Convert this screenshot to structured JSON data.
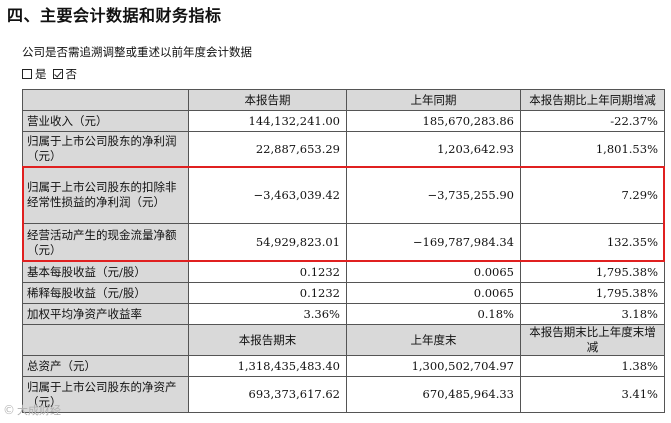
{
  "section_title": "四、主要会计数据和财务指标",
  "question": "公司是否需追溯调整或重述以前年度会计数据",
  "answers": [
    {
      "label": "是",
      "checked": false
    },
    {
      "label": "否",
      "checked": true
    }
  ],
  "table1": {
    "headers": [
      "",
      "本报告期",
      "上年同期",
      "本报告期比上年同期增减"
    ],
    "rows": [
      {
        "label": "营业收入（元）",
        "current": "144,132,241.00",
        "prior": "185,670,283.86",
        "change": "-22.37%"
      },
      {
        "label": "归属于上市公司股东的净利润（元）",
        "current": "22,887,653.29",
        "prior": "1,203,642.93",
        "change": "1,801.53%"
      },
      {
        "label": "归属于上市公司股东的扣除非经常性损益的净利润（元）",
        "current": "−3,463,039.42",
        "prior": "−3,735,255.90",
        "change": "7.29%"
      },
      {
        "label": "经营活动产生的现金流量净额（元）",
        "current": "54,929,823.01",
        "prior": "−169,787,984.34",
        "change": "132.35%"
      },
      {
        "label": "基本每股收益（元/股）",
        "current": "0.1232",
        "prior": "0.0065",
        "change": "1,795.38%"
      },
      {
        "label": "稀释每股收益（元/股）",
        "current": "0.1232",
        "prior": "0.0065",
        "change": "1,795.38%"
      },
      {
        "label": "加权平均净资产收益率",
        "current": "3.36%",
        "prior": "0.18%",
        "change": "3.18%"
      }
    ]
  },
  "table2": {
    "headers": [
      "",
      "本报告期末",
      "上年度末",
      "本报告期末比上年度末增减"
    ],
    "rows": [
      {
        "label": "总资产（元）",
        "current": "1,318,435,483.40",
        "prior": "1,300,502,704.97",
        "change": "1.38%"
      },
      {
        "label": "归属于上市公司股东的净资产（元）",
        "current": "693,373,617.62",
        "prior": "670,485,964.33",
        "change": "3.41%"
      }
    ]
  },
  "watermark": "大成财经",
  "colors": {
    "header_bg": "#d9d9d9",
    "highlight_border": "#e02020"
  }
}
